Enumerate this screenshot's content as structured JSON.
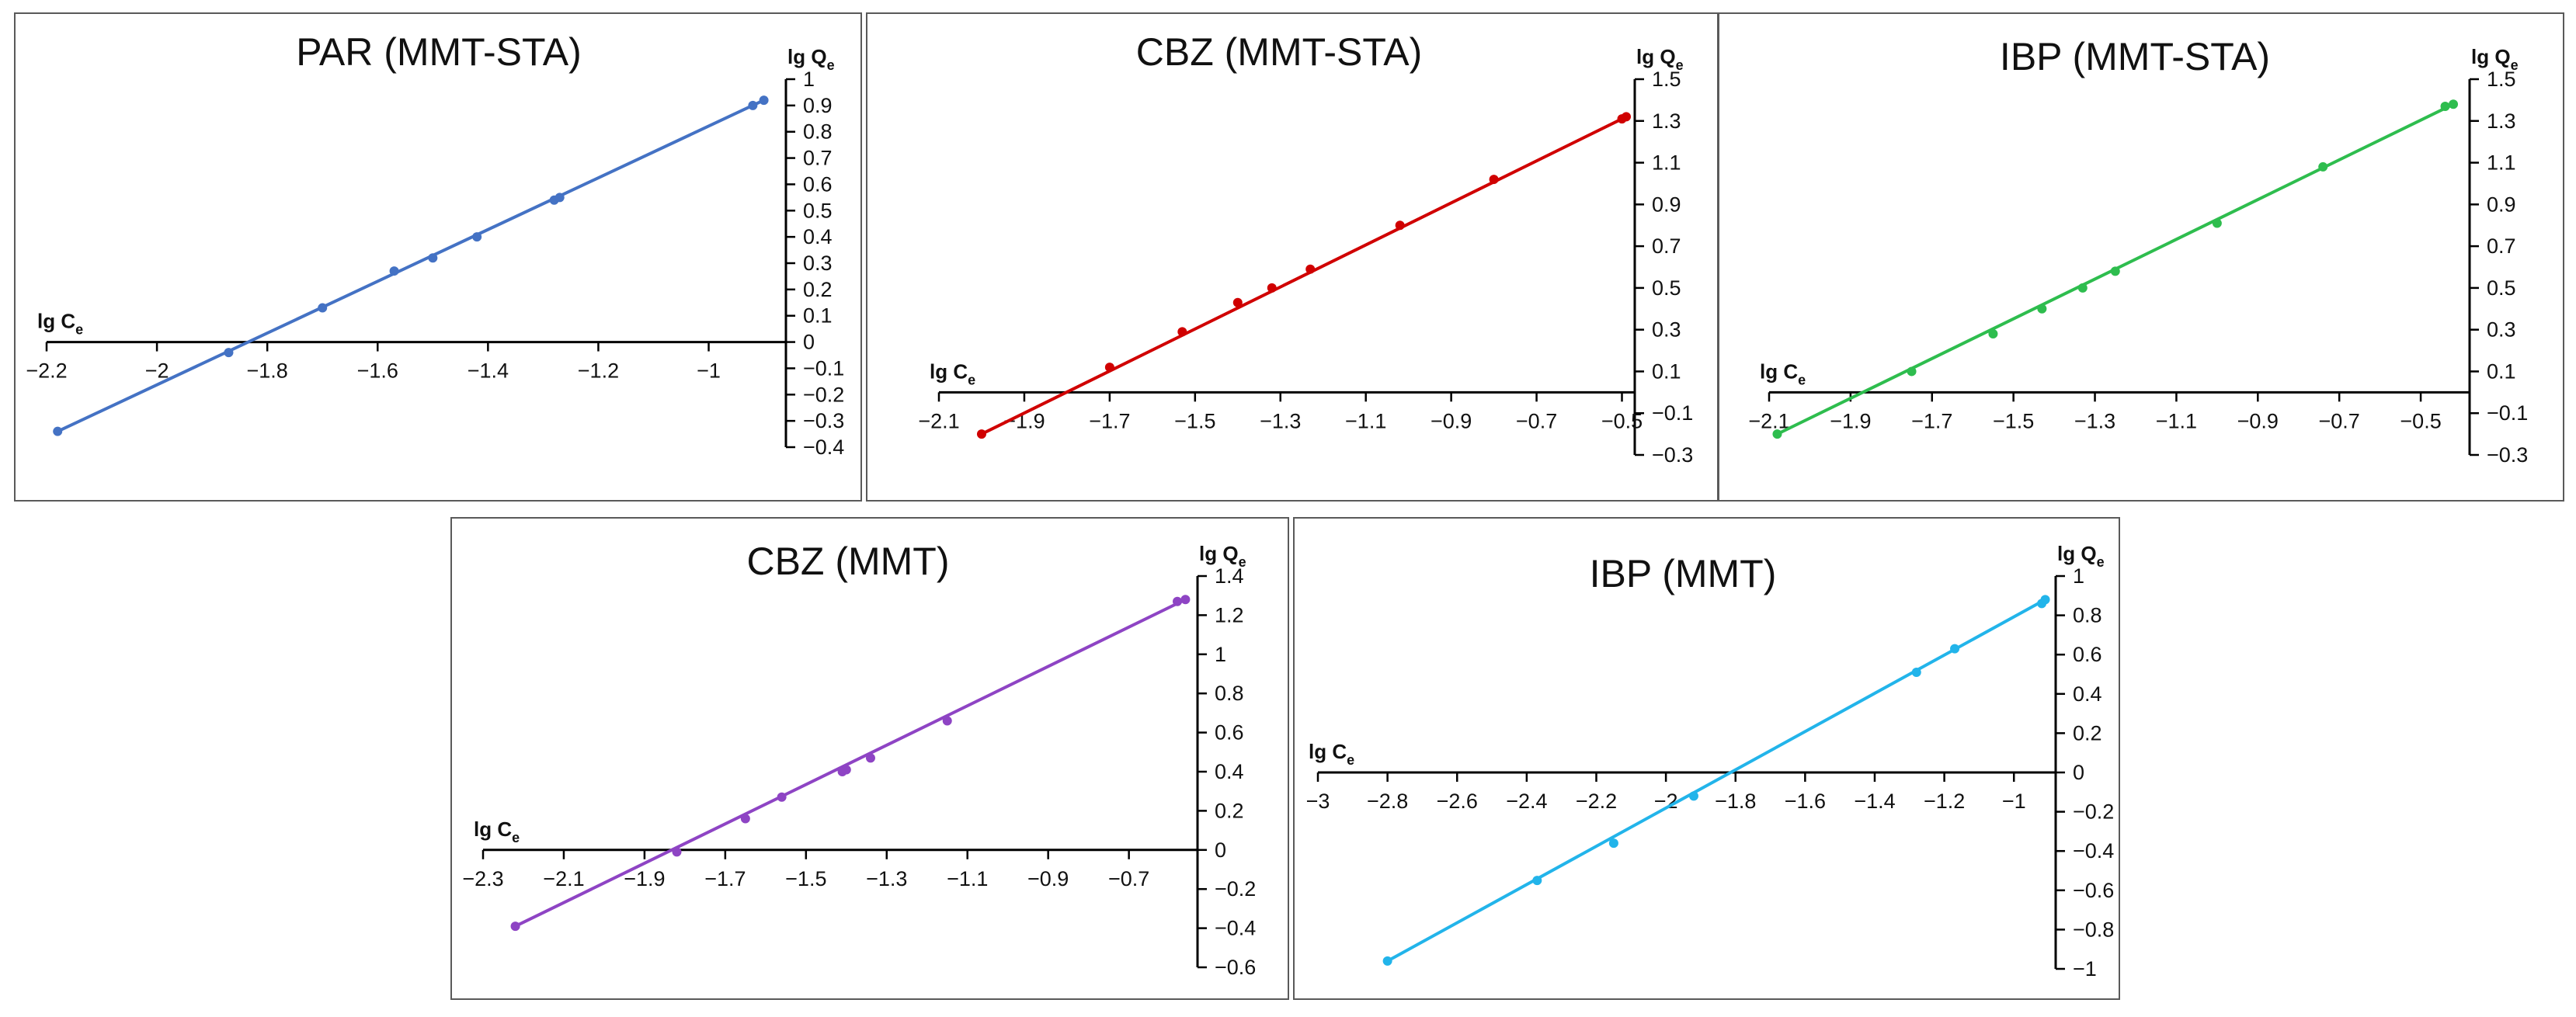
{
  "chart_data": [
    {
      "type": "scatter",
      "title": "PAR (MMT-STA)",
      "xlabel": "lg C",
      "xlabel_sub": "e",
      "ylabel": "lg Q",
      "ylabel_sub": "e",
      "color": "#4472c4",
      "xticks": [
        -2.2,
        -2,
        -1.8,
        -1.6,
        -1.4,
        -1.2,
        -1
      ],
      "yticks": [
        1,
        0.9,
        0.8,
        0.7,
        0.6,
        0.5,
        0.4,
        0.3,
        0.2,
        0.1,
        0,
        -0.1,
        -0.2,
        -0.3,
        -0.4
      ],
      "xlim": [
        -2.2,
        -0.86
      ],
      "ylim": [
        -0.4,
        1
      ],
      "trendline": [
        [
          -2.18,
          -0.34
        ],
        [
          -0.9,
          0.92
        ]
      ],
      "series": [
        {
          "x": [
            -2.18,
            -1.87,
            -1.7,
            -1.57,
            -1.5,
            -1.42,
            -1.28,
            -1.27,
            -0.92,
            -0.9
          ],
          "y": [
            -0.34,
            -0.04,
            0.13,
            0.27,
            0.32,
            0.4,
            0.54,
            0.55,
            0.9,
            0.92
          ]
        }
      ],
      "grid": false
    },
    {
      "type": "scatter",
      "title": "CBZ (MMT-STA)",
      "xlabel": "lg C",
      "xlabel_sub": "e",
      "ylabel": "lg Q",
      "ylabel_sub": "e",
      "color": "#d00000",
      "xticks": [
        -2.1,
        -1.9,
        -1.7,
        -1.5,
        -1.3,
        -1.1,
        -0.9,
        -0.7,
        -0.5
      ],
      "yticks": [
        1.5,
        1.3,
        1.1,
        0.9,
        0.7,
        0.5,
        0.3,
        0.1,
        -0.1,
        -0.3
      ],
      "xlim": [
        -2.1,
        -0.47
      ],
      "ylim": [
        -0.3,
        1.5
      ],
      "trendline": [
        [
          -2.0,
          -0.2
        ],
        [
          -0.49,
          1.32
        ]
      ],
      "series": [
        {
          "x": [
            -2.0,
            -1.7,
            -1.53,
            -1.4,
            -1.32,
            -1.23,
            -1.02,
            -0.8,
            -0.5,
            -0.49
          ],
          "y": [
            -0.2,
            0.12,
            0.29,
            0.43,
            0.5,
            0.59,
            0.8,
            1.02,
            1.31,
            1.32
          ]
        }
      ],
      "grid": false
    },
    {
      "type": "scatter",
      "title": "IBP (MMT-STA)",
      "xlabel": "lg C",
      "xlabel_sub": "e",
      "ylabel": "lg Q",
      "ylabel_sub": "e",
      "color": "#2ebd4e",
      "xticks": [
        -2.1,
        -1.9,
        -1.7,
        -1.5,
        -1.3,
        -1.1,
        -0.9,
        -0.7,
        -0.5
      ],
      "yticks": [
        1.5,
        1.3,
        1.1,
        0.9,
        0.7,
        0.5,
        0.3,
        0.1,
        -0.1,
        -0.3
      ],
      "xlim": [
        -2.1,
        -0.38
      ],
      "ylim": [
        -0.3,
        1.5
      ],
      "trendline": [
        [
          -2.08,
          -0.2
        ],
        [
          -0.42,
          1.38
        ]
      ],
      "series": [
        {
          "x": [
            -2.08,
            -1.75,
            -1.55,
            -1.43,
            -1.33,
            -1.25,
            -1.0,
            -0.74,
            -0.44,
            -0.42
          ],
          "y": [
            -0.2,
            0.1,
            0.28,
            0.4,
            0.5,
            0.58,
            0.81,
            1.08,
            1.37,
            1.38
          ]
        }
      ],
      "grid": false
    },
    {
      "type": "scatter",
      "title": "CBZ (MMT)",
      "xlabel": "lg C",
      "xlabel_sub": "e",
      "ylabel": "lg Q",
      "ylabel_sub": "e",
      "color": "#8e44c4",
      "xticks": [
        -2.3,
        -2.1,
        -1.9,
        -1.7,
        -1.5,
        -1.3,
        -1.1,
        -0.9,
        -0.7
      ],
      "yticks": [
        1.4,
        1.2,
        1,
        0.8,
        0.6,
        0.4,
        0.2,
        0,
        -0.2,
        -0.4,
        -0.6
      ],
      "xlim": [
        -2.3,
        -0.53
      ],
      "ylim": [
        -0.6,
        1.4
      ],
      "trendline": [
        [
          -2.22,
          -0.39
        ],
        [
          -0.56,
          1.28
        ]
      ],
      "series": [
        {
          "x": [
            -2.22,
            -1.82,
            -1.65,
            -1.56,
            -1.41,
            -1.4,
            -1.34,
            -1.15,
            -0.58,
            -0.56
          ],
          "y": [
            -0.39,
            -0.01,
            0.16,
            0.27,
            0.4,
            0.41,
            0.47,
            0.66,
            1.27,
            1.28
          ]
        }
      ],
      "grid": false
    },
    {
      "type": "scatter",
      "title": "IBP (MMT)",
      "xlabel": "lg C",
      "xlabel_sub": "e",
      "ylabel": "lg Q",
      "ylabel_sub": "e",
      "color": "#22b4ea",
      "xticks": [
        -3,
        -2.8,
        -2.6,
        -2.4,
        -2.2,
        -2,
        -1.8,
        -1.6,
        -1.4,
        -1.2,
        -1
      ],
      "yticks": [
        1,
        0.8,
        0.6,
        0.4,
        0.2,
        0,
        -0.2,
        -0.4,
        -0.6,
        -0.8,
        -1
      ],
      "xlim": [
        -3,
        -0.88
      ],
      "ylim": [
        -1,
        1
      ],
      "trendline": [
        [
          -2.8,
          -0.96
        ],
        [
          -0.91,
          0.88
        ]
      ],
      "series": [
        {
          "x": [
            -2.8,
            -2.37,
            -2.15,
            -1.92,
            -1.28,
            -1.17,
            -0.92,
            -0.91
          ],
          "y": [
            -0.96,
            -0.55,
            -0.36,
            -0.12,
            0.51,
            0.63,
            0.86,
            0.88
          ]
        }
      ],
      "grid": false
    }
  ]
}
